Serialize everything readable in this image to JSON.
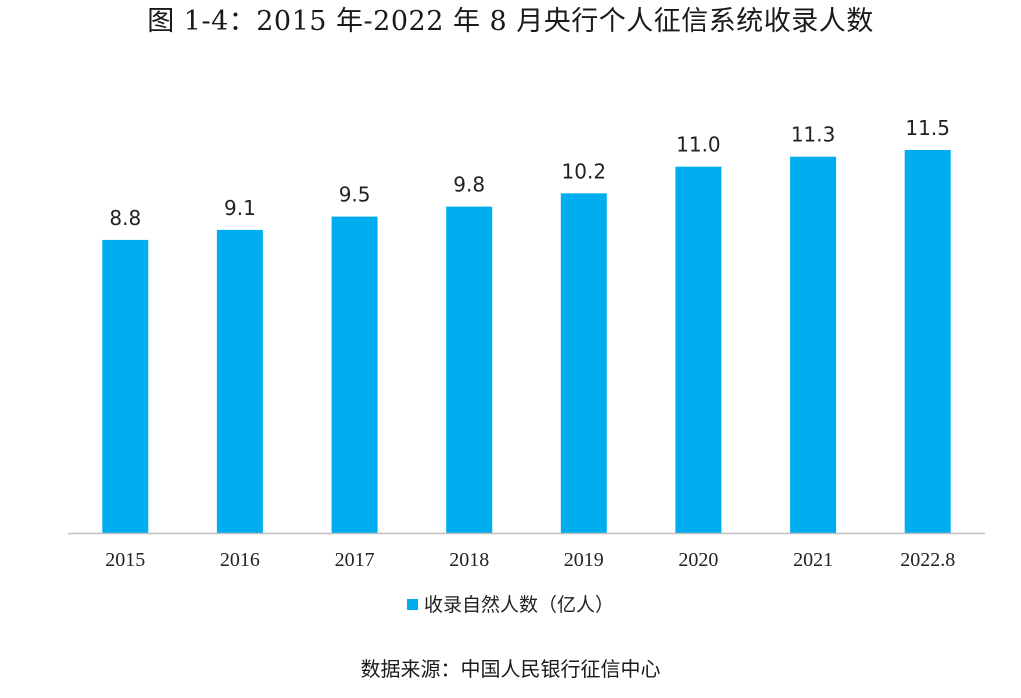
{
  "title": "图 1-4：2015 年-2022 年 8 月央行个人征信系统收录人数",
  "source": "数据来源：中国人民银行征信中心",
  "colors": {
    "bar": "#00AEEF",
    "axis": "#BFBFBF",
    "text": "#222222"
  },
  "chart_data": {
    "type": "bar",
    "title": "图 1-4：2015 年-2022 年 8 月央行个人征信系统收录人数",
    "categories": [
      "2015",
      "2016",
      "2017",
      "2018",
      "2019",
      "2020",
      "2021",
      "2022.8"
    ],
    "series": [
      {
        "name": "收录自然人数（亿人）",
        "values": [
          8.8,
          9.1,
          9.5,
          9.8,
          10.2,
          11.0,
          11.3,
          11.5
        ]
      }
    ],
    "data_labels": [
      "8.8",
      "9.1",
      "9.5",
      "9.8",
      "10.2",
      "11.0",
      "11.3",
      "11.5"
    ],
    "ylim": [
      0,
      11.5
    ],
    "xlabel": "",
    "ylabel": "",
    "grid": false,
    "legend_position": "bottom"
  }
}
